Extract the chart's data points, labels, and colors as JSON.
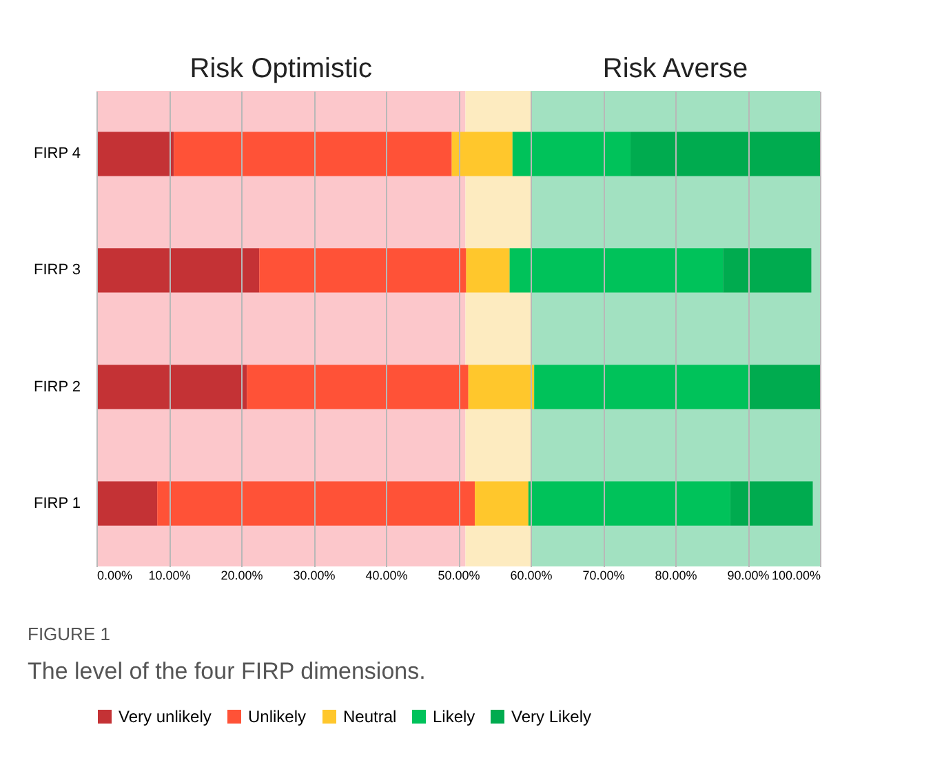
{
  "chart_data": {
    "type": "bar",
    "orientation": "horizontal",
    "stacked": true,
    "categories": [
      "FIRP 4",
      "FIRP 3",
      "FIRP 2",
      "FIRP 1"
    ],
    "series": [
      {
        "name": "Very unlikely",
        "color": "#c43235",
        "values": [
          10.7,
          22.5,
          20.8,
          8.4
        ]
      },
      {
        "name": "Unlikely",
        "color": "#ff5237",
        "values": [
          38.4,
          28.6,
          30.6,
          43.9
        ]
      },
      {
        "name": "Neutral",
        "color": "#ffc72c",
        "values": [
          8.4,
          6.0,
          9.1,
          7.4
        ]
      },
      {
        "name": "Likely",
        "color": "#00c25a",
        "values": [
          16.3,
          29.5,
          29.7,
          27.9
        ]
      },
      {
        "name": "Very Likely",
        "color": "#00ab4f",
        "values": [
          26.2,
          12.2,
          9.8,
          11.4
        ]
      }
    ],
    "xlim": [
      0,
      100
    ],
    "xticks": [
      {
        "value": 0,
        "label": "0.00%"
      },
      {
        "value": 10,
        "label": "10.00%"
      },
      {
        "value": 20,
        "label": "20.00%"
      },
      {
        "value": 30,
        "label": "30.00%"
      },
      {
        "value": 40,
        "label": "40.00%"
      },
      {
        "value": 50,
        "label": "50.00%"
      },
      {
        "value": 60,
        "label": "60.00%"
      },
      {
        "value": 70,
        "label": "70.00%"
      },
      {
        "value": 80,
        "label": "80.00%"
      },
      {
        "value": 90,
        "label": "90.00%"
      },
      {
        "value": 100,
        "label": "100.00%"
      }
    ],
    "bands": [
      {
        "axis": "x",
        "from": 0,
        "to": 51,
        "label": "Risk Optimistic",
        "color": "#fcc7cb"
      },
      {
        "axis": "x",
        "from": 51,
        "to": 60,
        "label": null,
        "color": "#fdebc0"
      },
      {
        "axis": "x",
        "from": 60,
        "to": 100,
        "label": "Risk Averse",
        "color": "#a2e1c1"
      }
    ],
    "grid": "x",
    "legend": "bottom",
    "annotations": [
      "FIGURE 1",
      "The level of the four FIRP dimensions."
    ]
  }
}
